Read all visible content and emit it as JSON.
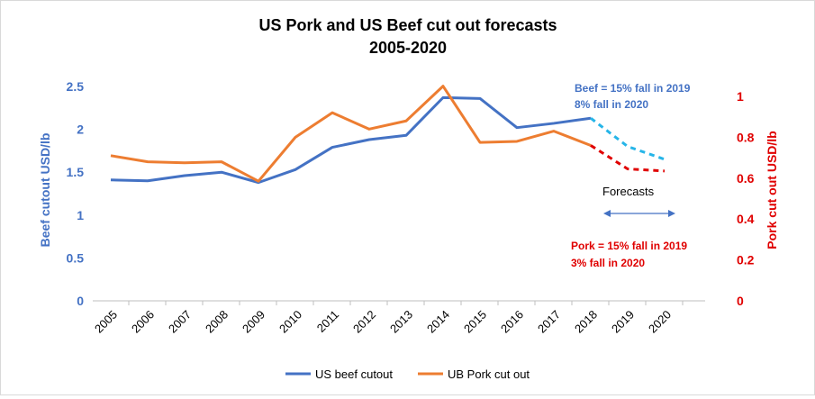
{
  "chart_data": {
    "type": "line",
    "title_line1": "US Pork and US Beef cut out forecasts",
    "title_line2": "2005-2020",
    "ylabel_left": "Beef cutout USD/lb",
    "ylabel_right": "Pork cut out USD/lb",
    "x": [
      "2005",
      "2006",
      "2007",
      "2008",
      "2009",
      "2010",
      "2011",
      "2012",
      "2013",
      "2014",
      "2015",
      "2016",
      "2017",
      "2018",
      "2019",
      "2020"
    ],
    "y_left_ticks": [
      "0",
      "0.5",
      "1",
      "1.5",
      "2",
      "2.5"
    ],
    "y_right_ticks": [
      "0",
      "0.2",
      "0.4",
      "0.6",
      "0.8",
      "1"
    ],
    "ylim_left": [
      0,
      2.5
    ],
    "ylim_right": [
      0,
      1.05
    ],
    "grid": false,
    "legend_position": "bottom",
    "series": [
      {
        "name": "US beef cutout",
        "axis": "left",
        "color": "#4472c4",
        "forecast_color": "#26b5e8",
        "values": [
          1.41,
          1.4,
          1.46,
          1.5,
          1.38,
          1.53,
          1.79,
          1.88,
          1.93,
          2.37,
          2.36,
          2.02,
          2.07,
          2.13,
          1.8,
          1.65
        ],
        "forecast_from_index": 13
      },
      {
        "name": "UB Pork cut out",
        "axis": "right",
        "color": "#ed7d31",
        "forecast_color": "#e00000",
        "values": [
          0.71,
          0.68,
          0.675,
          0.68,
          0.585,
          0.8,
          0.92,
          0.84,
          0.88,
          1.05,
          0.775,
          0.78,
          0.83,
          0.76,
          0.645,
          0.635
        ],
        "forecast_from_index": 13
      }
    ],
    "annotations": {
      "beef_line1": "Beef = 15% fall in 2019",
      "beef_line2": "8% fall in 2020",
      "pork_line1": "Pork = 15% fall in 2019",
      "pork_line2": "3% fall in 2020",
      "forecasts": "Forecasts"
    },
    "colors": {
      "left_axis": "#4472c4",
      "right_axis": "#e00000",
      "beef_annotation": "#4472c4",
      "pork_annotation": "#e00000"
    }
  }
}
